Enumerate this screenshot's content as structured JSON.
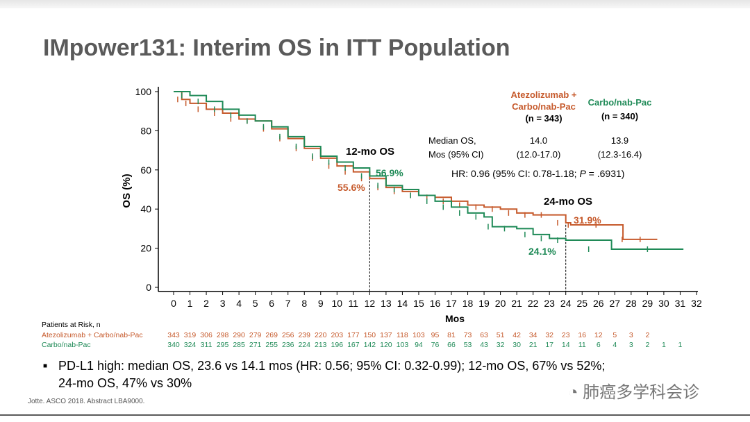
{
  "title": "IMpower131: Interim OS in ITT Population",
  "legend": {
    "atezo_name": "Atezolizumab +",
    "atezo_name2": "Carbo/nab-Pac",
    "atezo_n": "(n = 343)",
    "carbo_name": "Carbo/nab-Pac",
    "carbo_n": "(n = 340)"
  },
  "median": {
    "label1": "Median OS,",
    "label2": "Mos (95% CI)",
    "atezo_val": "14.0",
    "atezo_ci": "(12.0-17.0)",
    "carbo_val": "13.9",
    "carbo_ci": "(12.3-16.4)"
  },
  "hr": {
    "prefix": "HR: 0.96 (95% CI: 0.78-1.18; ",
    "p": "P",
    "suffix": " = .6931)"
  },
  "annotations": {
    "os12": "12-mo OS",
    "os12_atezo": "55.6%",
    "os12_carbo": "56.9%",
    "os24": "24-mo OS",
    "os24_atezo": "31.9%",
    "os24_carbo": "24.1%"
  },
  "risk": {
    "header": "Patients at Risk, n",
    "atezo_label": "Atezolizumab + Carbo/nab-Pac",
    "carbo_label": "Carbo/nab-Pac",
    "atezo": [
      "343",
      "319",
      "306",
      "298",
      "290",
      "279",
      "269",
      "256",
      "239",
      "220",
      "203",
      "177",
      "150",
      "137",
      "118",
      "103",
      "95",
      "81",
      "73",
      "63",
      "51",
      "42",
      "34",
      "32",
      "23",
      "16",
      "12",
      "5",
      "3",
      "2"
    ],
    "carbo": [
      "340",
      "324",
      "311",
      "295",
      "285",
      "271",
      "255",
      "236",
      "224",
      "213",
      "196",
      "167",
      "142",
      "120",
      "103",
      "94",
      "76",
      "66",
      "53",
      "43",
      "32",
      "30",
      "21",
      "17",
      "14",
      "11",
      "6",
      "4",
      "3",
      "2",
      "1",
      "1"
    ]
  },
  "bullet": {
    "line1": "PD-L1 high: median OS, 23.6 vs 14.1 mos (HR: 0.56; 95% CI: 0.32-0.99); 12-mo OS, 67% vs 52%;",
    "line2": "24-mo OS, 47% vs 30%"
  },
  "footnote": "Jotte. ASCO 2018. Abstract LBA9000.",
  "watermark": "肺癌多学科会诊",
  "colors": {
    "atezo": "#c65a2c",
    "carbo": "#1f8a57"
  },
  "chart_data": {
    "type": "line",
    "xlabel": "Mos",
    "ylabel": "OS (%)",
    "xlim": [
      0,
      32
    ],
    "ylim": [
      0,
      100
    ],
    "xticks": [
      0,
      1,
      2,
      3,
      4,
      5,
      6,
      7,
      8,
      9,
      10,
      11,
      12,
      13,
      14,
      15,
      16,
      17,
      18,
      19,
      20,
      21,
      22,
      23,
      24,
      25,
      26,
      27,
      28,
      29,
      30,
      31,
      32
    ],
    "yticks": [
      0,
      20,
      40,
      60,
      80,
      100
    ],
    "series": [
      {
        "name": "Atezolizumab + Carbo/nab-Pac",
        "x": [
          0,
          0.5,
          1,
          2,
          3,
          4,
          5,
          6,
          7,
          8,
          9,
          10,
          11,
          12,
          13,
          14,
          15,
          16,
          17,
          18,
          19,
          20,
          21,
          22,
          23,
          24,
          24.3,
          27.4,
          27.5,
          29.6
        ],
        "y": [
          100,
          96,
          94,
          91,
          89,
          86,
          85,
          81,
          76,
          71,
          66,
          62,
          59,
          55.6,
          51,
          49,
          47,
          46,
          44,
          42,
          41,
          40,
          38,
          37,
          37,
          33,
          31.9,
          31.9,
          24.5,
          24.5
        ]
      },
      {
        "name": "Carbo/nab-Pac",
        "x": [
          0,
          1,
          2,
          3,
          4,
          5,
          6,
          7,
          8,
          9,
          10,
          11,
          12,
          13,
          14,
          15,
          16,
          17,
          18,
          19,
          19.5,
          21,
          22,
          23,
          24,
          26.8,
          31.2
        ],
        "y": [
          100,
          98,
          95,
          91,
          88,
          85,
          82,
          77,
          72,
          67,
          64,
          61,
          56.9,
          52,
          50,
          47,
          44,
          41,
          38,
          36,
          31,
          30,
          27,
          25,
          24.1,
          19.5,
          19.5
        ]
      }
    ]
  }
}
